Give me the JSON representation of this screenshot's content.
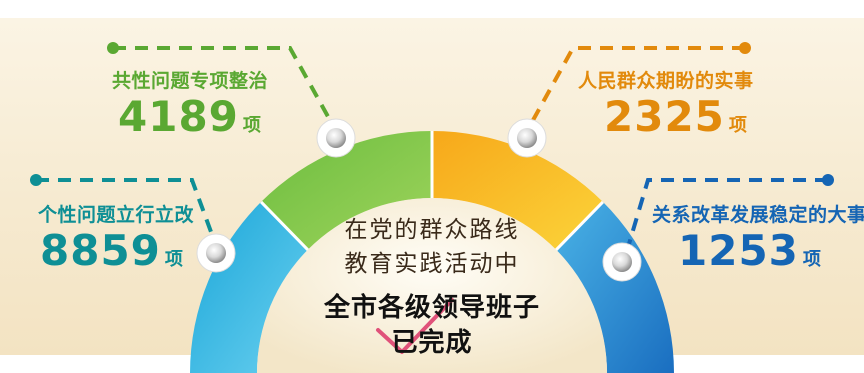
{
  "items": [
    {
      "label": "共性问题专项整治",
      "value": "4189",
      "unit": "项",
      "color": "#5aa832"
    },
    {
      "label": "人民群众期盼的实事",
      "value": "2325",
      "unit": "项",
      "color": "#e28a0c"
    },
    {
      "label": "个性问题立行立改",
      "value": "8859",
      "unit": "项",
      "color": "#0e8f95"
    },
    {
      "label": "关系改革发展稳定的大事",
      "value": "1253",
      "unit": "项",
      "color": "#1565b4"
    }
  ],
  "center": {
    "line1": "在党的群众路线",
    "line2": "教育实践活动中",
    "line3": "全市各级领导班子",
    "line4": "已完成"
  },
  "icons": {
    "segment_knob": "circle-knob-icon",
    "connector_dot": "dot-endpoint-icon",
    "check_mark": "check-mark-icon"
  }
}
